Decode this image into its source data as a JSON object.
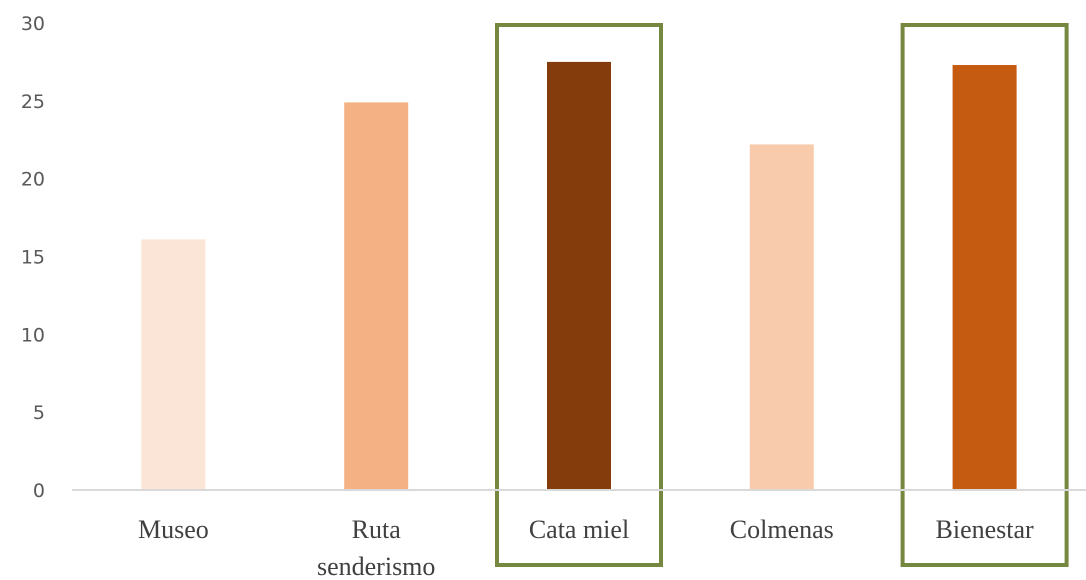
{
  "chart_data": {
    "type": "bar",
    "categories": [
      "Museo",
      "Ruta senderismo",
      "Cata miel",
      "Colmenas",
      "Bienestar"
    ],
    "category_label_lines": [
      [
        "Museo"
      ],
      [
        "Ruta",
        "senderismo"
      ],
      [
        "Cata miel"
      ],
      [
        "Colmenas"
      ],
      [
        "Bienestar"
      ]
    ],
    "values": [
      16.1,
      24.9,
      27.5,
      22.2,
      27.3
    ],
    "bar_colors": [
      "#FBE5D6",
      "#F4B183",
      "#843C0C",
      "#F8CBAD",
      "#C55A11"
    ],
    "highlighted": [
      false,
      false,
      true,
      false,
      true
    ],
    "highlight_color": "#76873F",
    "ylim": [
      0,
      30
    ],
    "yticks": [
      0,
      5,
      10,
      15,
      20,
      25,
      30
    ],
    "title": "",
    "xlabel": "",
    "ylabel": "",
    "grid": false,
    "legend": "none",
    "axis_color": "#D9D9D9"
  }
}
